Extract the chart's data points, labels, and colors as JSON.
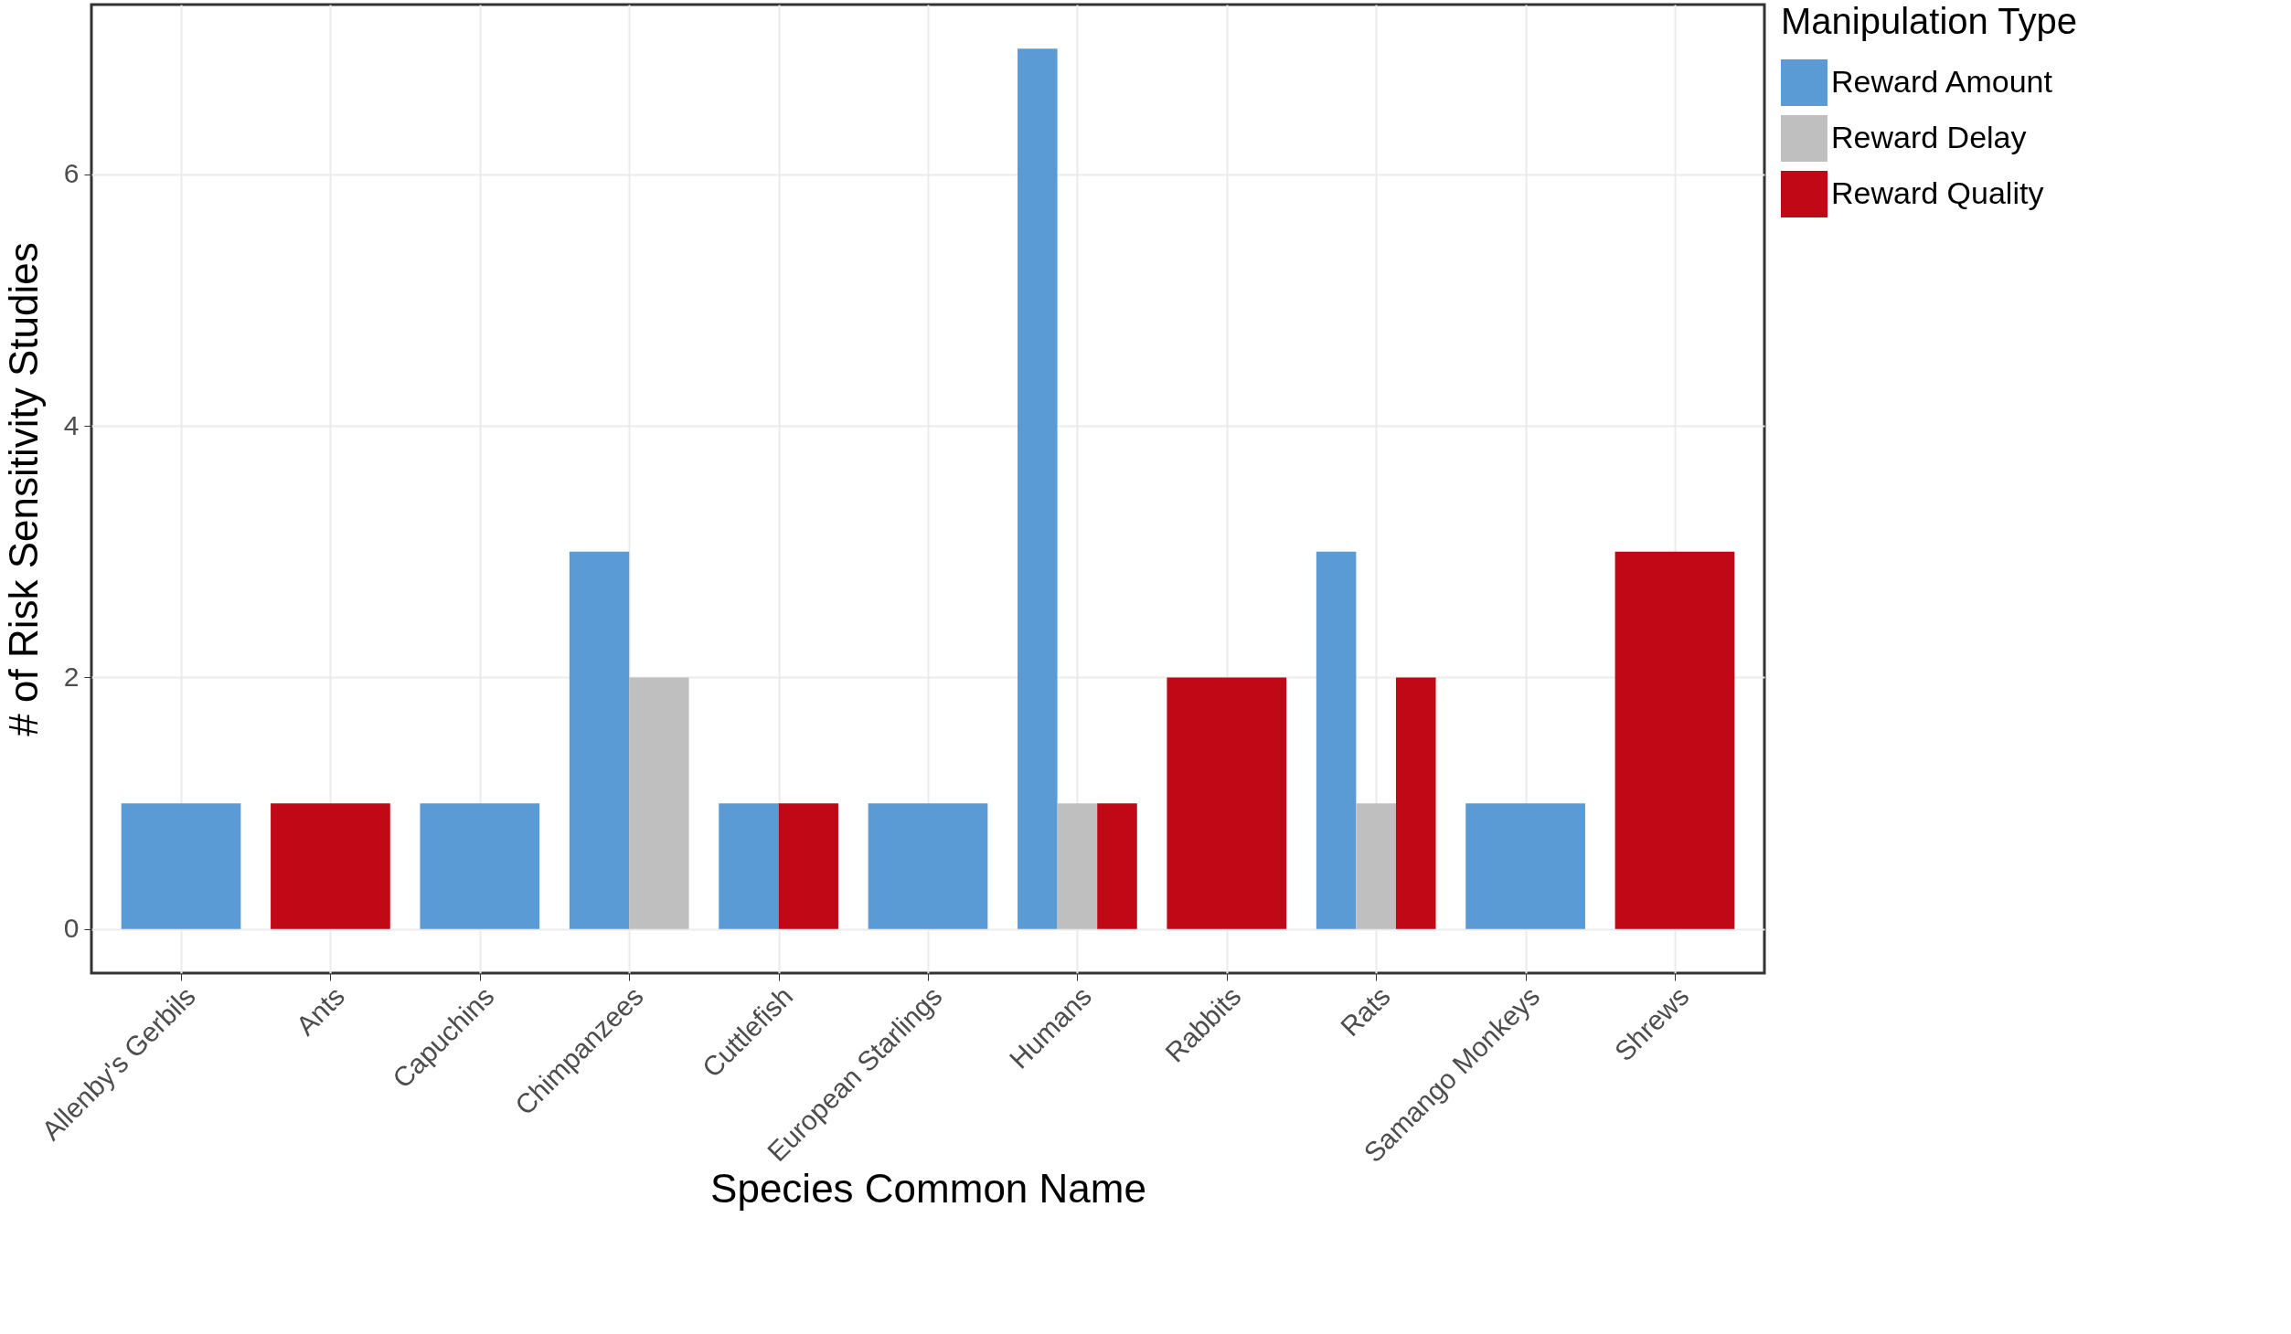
{
  "chart_data": {
    "type": "bar",
    "xlabel": "Species Common Name",
    "ylabel": "# of Risk Sensitivity Studies",
    "legend_title": "Manipulation Type",
    "categories": [
      "Allenby's Gerbils",
      "Ants",
      "Capuchins",
      "Chimpanzees",
      "Cuttlefish",
      "European Starlings",
      "Humans",
      "Rabbits",
      "Rats",
      "Samango Monkeys",
      "Shrews"
    ],
    "series": [
      {
        "name": "Reward Amount",
        "color": "#5b9bd5",
        "values": [
          1,
          null,
          1,
          3,
          1,
          1,
          7,
          null,
          3,
          1,
          null
        ]
      },
      {
        "name": "Reward Delay",
        "color": "#bfbfbf",
        "values": [
          null,
          null,
          null,
          2,
          null,
          null,
          1,
          null,
          1,
          null,
          null
        ]
      },
      {
        "name": "Reward Quality",
        "color": "#c00816",
        "values": [
          null,
          1,
          null,
          null,
          1,
          null,
          1,
          2,
          2,
          null,
          3
        ]
      }
    ],
    "ylim": [
      -0.35,
      7.35
    ],
    "yticks": [
      0,
      2,
      4,
      6
    ],
    "grid": true,
    "legend": "right"
  }
}
